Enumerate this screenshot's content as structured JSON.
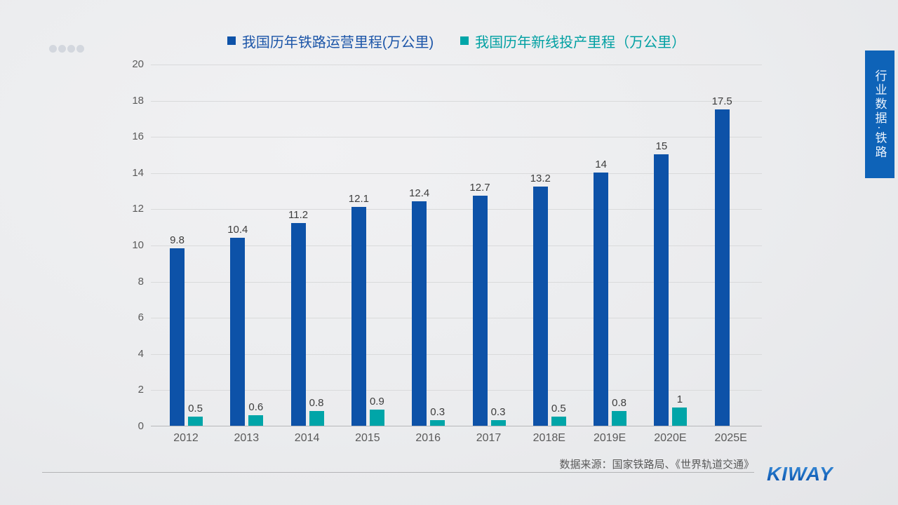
{
  "side_tab": {
    "label": "行业数据·铁路",
    "color": "#0e63b8"
  },
  "source_note": "数据来源：国家铁路局、《世界轨道交通》",
  "logo_text": "KIWAY",
  "legend": {
    "items": [
      {
        "label": "我国历年铁路运营里程(万公里)",
        "color": "#0d52a8",
        "text_color": "#1b55a8"
      },
      {
        "label": "我国历年新线投产里程（万公里）",
        "color": "#00a5a8",
        "text_color": "#00a0a2"
      }
    ]
  },
  "chart_data": {
    "type": "bar",
    "categories": [
      "2012",
      "2013",
      "2014",
      "2015",
      "2016",
      "2017",
      "2018E",
      "2019E",
      "2020E",
      "2025E"
    ],
    "series": [
      {
        "name": "我国历年铁路运营里程(万公里)",
        "color": "#0d52a8",
        "values": [
          9.8,
          10.4,
          11.2,
          12.1,
          12.4,
          12.7,
          13.2,
          14,
          15,
          17.5
        ]
      },
      {
        "name": "我国历年新线投产里程（万公里）",
        "color": "#00a5a8",
        "values": [
          0.5,
          0.6,
          0.8,
          0.9,
          0.3,
          0.3,
          0.5,
          0.8,
          1,
          null
        ]
      }
    ],
    "title": "",
    "xlabel": "",
    "ylabel": "",
    "ylim": [
      0,
      20
    ],
    "ytick_step": 2,
    "grid": true,
    "legend_position": "top"
  }
}
